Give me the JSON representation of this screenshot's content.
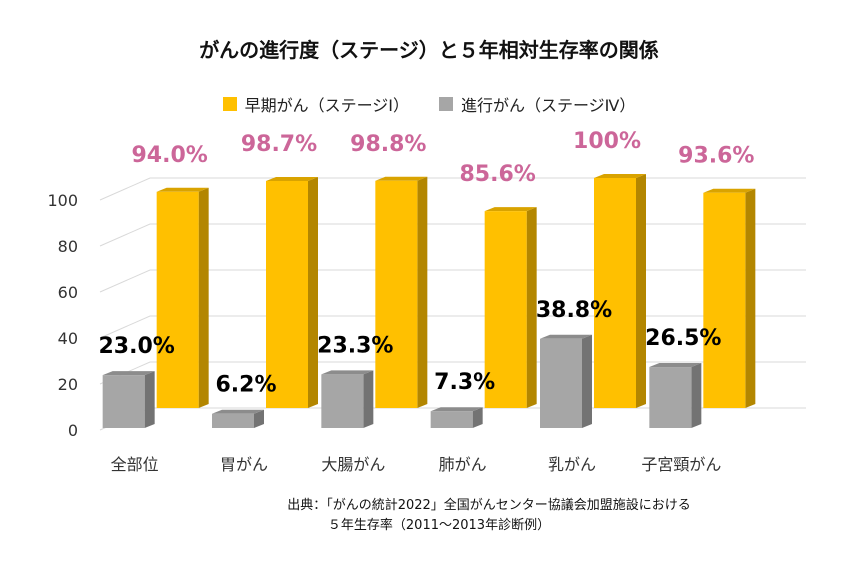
{
  "chart_data": {
    "type": "bar",
    "title": "がんの進行度（ステージ）と５年相対生存率の関係",
    "categories": [
      "全部位",
      "胃がん",
      "大腸がん",
      "肺がん",
      "乳がん",
      "子宮頸がん"
    ],
    "series": [
      {
        "name": "早期がん（ステージⅠ）",
        "color": "#FFC000",
        "side_color": "#B38600",
        "top_color": "#D9A300",
        "label_color": "#CC6699",
        "values": [
          94.0,
          98.7,
          98.8,
          85.6,
          100,
          93.6
        ],
        "labels": [
          "94.0%",
          "98.7%",
          "98.8%",
          "85.6%",
          "100%",
          "93.6%"
        ]
      },
      {
        "name": "進行がん（ステージⅣ）",
        "color": "#A6A6A6",
        "side_color": "#737373",
        "top_color": "#8C8C8C",
        "label_color": "#000000",
        "values": [
          23.0,
          6.2,
          23.3,
          7.3,
          38.8,
          26.5
        ],
        "labels": [
          "23.0%",
          "6.2%",
          "23.3%",
          "7.3%",
          "38.8%",
          "26.5%"
        ]
      }
    ],
    "yticks": [
      "0",
      "20",
      "40",
      "60",
      "80",
      "100"
    ],
    "ylim": [
      0,
      100
    ],
    "grid": true,
    "legend": "top-center"
  },
  "source": {
    "line1": "出典：「がんの統計2022」全国がんセンター協議会加盟施設における",
    "line2": "５年生存率（2011～2013年診断例）"
  }
}
